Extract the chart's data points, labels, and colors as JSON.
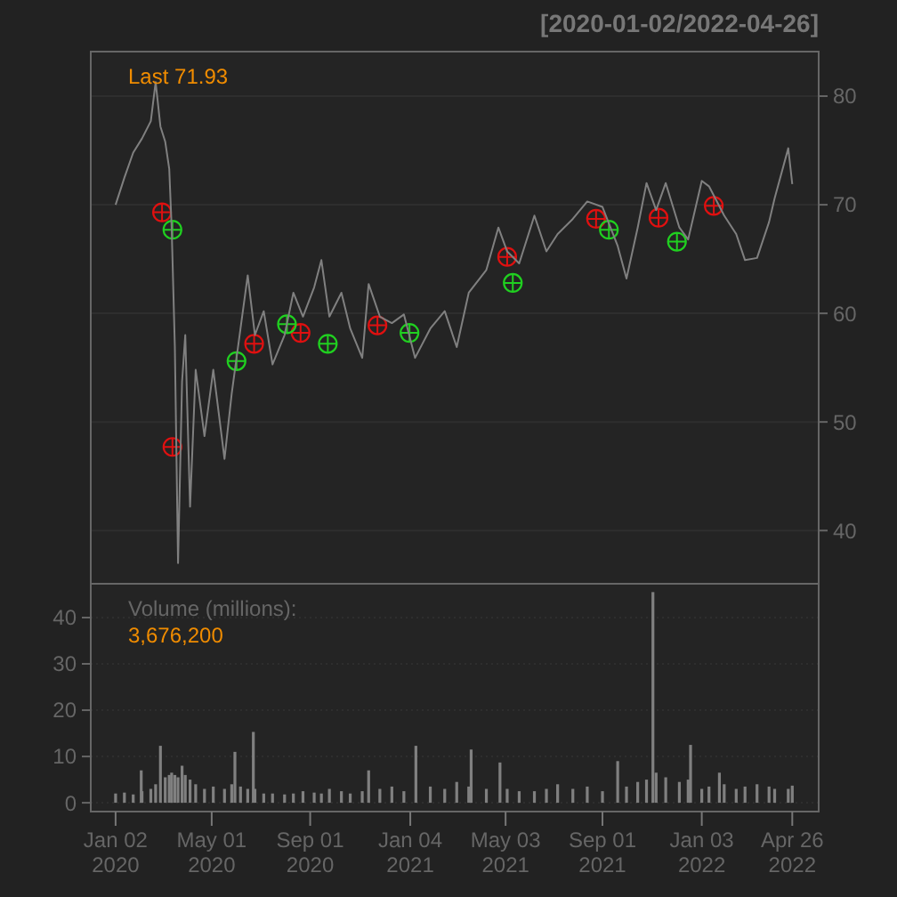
{
  "chart_data": [
    {
      "type": "line",
      "title": "[2020-01-02/2022-04-26]",
      "annotations": [
        "Last 71.93"
      ],
      "xlim": [
        "2019-12-02",
        "2022-05-29"
      ],
      "tick_labels": "y",
      "ylim": [
        35.1,
        84.1
      ],
      "yticks": [
        40,
        50,
        60,
        70,
        80
      ],
      "grid": "y",
      "series": [
        {
          "color": "#808080",
          "x": [
            "2020-01-02",
            "2020-01-13",
            "2020-01-24",
            "2020-02-04",
            "2020-02-15",
            "2020-02-21",
            "2020-02-27",
            "2020-03-04",
            "2020-03-09",
            "2020-03-12",
            "2020-03-16",
            "2020-03-20",
            "2020-03-25",
            "2020-03-29",
            "2020-04-04",
            "2020-04-11",
            "2020-04-22",
            "2020-05-03",
            "2020-05-17",
            "2020-05-26",
            "2020-06-06",
            "2020-06-15",
            "2020-06-24",
            "2020-07-05",
            "2020-07-16",
            "2020-07-31",
            "2020-08-11",
            "2020-08-23",
            "2020-09-06",
            "2020-09-15",
            "2020-09-25",
            "2020-10-10",
            "2020-10-21",
            "2020-11-05",
            "2020-11-13",
            "2020-11-27",
            "2020-12-12",
            "2020-12-27",
            "2021-01-10",
            "2021-01-29",
            "2021-02-16",
            "2021-03-03",
            "2021-03-18",
            "2021-04-09",
            "2021-04-24",
            "2021-05-05",
            "2021-05-20",
            "2021-06-08",
            "2021-06-23",
            "2021-07-07",
            "2021-07-26",
            "2021-08-13",
            "2021-09-01",
            "2021-09-20",
            "2021-10-01",
            "2021-10-15",
            "2021-10-26",
            "2021-11-07",
            "2021-11-19",
            "2021-12-06",
            "2021-12-17",
            "2022-01-03",
            "2022-01-12",
            "2022-01-31",
            "2022-02-15",
            "2022-02-26",
            "2022-03-13",
            "2022-03-28",
            "2022-04-04",
            "2022-04-21",
            "2022-04-26"
          ],
          "values": [
            70.0,
            72.5,
            74.8,
            76.1,
            77.7,
            81.3,
            77.2,
            75.8,
            73.3,
            67.9,
            56.9,
            37.0,
            53.7,
            58.0,
            42.2,
            54.8,
            48.7,
            54.8,
            46.6,
            52.6,
            58.6,
            63.5,
            58.0,
            60.2,
            55.3,
            58.0,
            61.9,
            59.7,
            62.4,
            64.9,
            59.7,
            61.9,
            58.6,
            55.9,
            62.7,
            59.7,
            59.1,
            59.9,
            55.9,
            58.6,
            60.2,
            56.9,
            61.9,
            64.0,
            67.9,
            65.7,
            64.6,
            69.0,
            65.7,
            67.3,
            68.7,
            70.3,
            69.8,
            66.2,
            63.2,
            67.9,
            72.0,
            69.5,
            72.0,
            67.9,
            66.8,
            72.2,
            71.7,
            69.0,
            67.3,
            64.9,
            65.1,
            68.4,
            70.6,
            75.2,
            71.9
          ]
        },
        {
          "type": "scatter",
          "color": "#e01010",
          "marker": "circle",
          "x": [
            "2020-02-29",
            "2020-03-13",
            "2020-06-23",
            "2020-08-20",
            "2020-11-24",
            "2021-05-05",
            "2021-08-24",
            "2021-11-10",
            "2022-01-18"
          ],
          "values": [
            69.3,
            47.7,
            57.2,
            58.2,
            58.9,
            65.2,
            68.7,
            68.8,
            69.9
          ]
        },
        {
          "type": "scatter",
          "color": "#20d020",
          "marker": "circle",
          "x": [
            "2020-03-13",
            "2020-06-01",
            "2020-08-03",
            "2020-09-23",
            "2021-01-03",
            "2021-05-12",
            "2021-09-09",
            "2021-12-03"
          ],
          "values": [
            67.7,
            55.6,
            59.0,
            57.2,
            58.2,
            62.8,
            67.7,
            66.6
          ]
        }
      ]
    },
    {
      "type": "bar",
      "annotations": [
        "Volume (millions):",
        "3,676,200"
      ],
      "xlim": [
        "2019-12-02",
        "2022-05-29"
      ],
      "xticks": [
        {
          "value": "2020-01-02",
          "label": "Jan 02\n2020"
        },
        {
          "value": "2020-05-01",
          "label": "May 01\n2020"
        },
        {
          "value": "2020-09-01",
          "label": "Sep 01\n2020"
        },
        {
          "value": "2021-01-04",
          "label": "Jan 04\n2021"
        },
        {
          "value": "2021-05-03",
          "label": "May 03\n2021"
        },
        {
          "value": "2021-09-01",
          "label": "Sep 01\n2021"
        },
        {
          "value": "2022-01-03",
          "label": "Jan 03\n2022"
        },
        {
          "value": "2022-04-26",
          "label": "Apr 26\n2022"
        }
      ],
      "ylim": [
        -1.9,
        47.3
      ],
      "yticks": [
        0,
        10,
        20,
        30,
        40
      ],
      "grid": "y",
      "color": "#808080",
      "x": [
        "2020-01-02",
        "2020-01-13",
        "2020-01-24",
        "2020-02-03",
        "2020-02-04",
        "2020-02-15",
        "2020-02-21",
        "2020-02-27",
        "2020-03-04",
        "2020-03-09",
        "2020-03-12",
        "2020-03-16",
        "2020-03-20",
        "2020-03-25",
        "2020-03-29",
        "2020-04-04",
        "2020-04-11",
        "2020-04-22",
        "2020-05-03",
        "2020-05-17",
        "2020-05-26",
        "2020-05-30",
        "2020-06-06",
        "2020-06-15",
        "2020-06-22",
        "2020-06-24",
        "2020-07-05",
        "2020-07-16",
        "2020-07-31",
        "2020-08-11",
        "2020-08-23",
        "2020-09-06",
        "2020-09-15",
        "2020-09-25",
        "2020-10-10",
        "2020-10-21",
        "2020-11-05",
        "2020-11-13",
        "2020-11-27",
        "2020-12-12",
        "2020-12-27",
        "2021-01-11",
        "2021-01-29",
        "2021-02-16",
        "2021-03-03",
        "2021-03-18",
        "2021-03-21",
        "2021-04-09",
        "2021-04-26",
        "2021-05-05",
        "2021-05-20",
        "2021-06-08",
        "2021-06-23",
        "2021-07-07",
        "2021-07-26",
        "2021-08-13",
        "2021-09-01",
        "2021-09-20",
        "2021-10-01",
        "2021-10-15",
        "2021-10-26",
        "2021-11-03",
        "2021-11-07",
        "2021-11-19",
        "2021-12-06",
        "2021-12-17",
        "2021-12-20",
        "2022-01-03",
        "2022-01-12",
        "2022-01-25",
        "2022-01-31",
        "2022-02-15",
        "2022-02-26",
        "2022-03-13",
        "2022-03-28",
        "2022-04-04",
        "2022-04-21",
        "2022-04-26"
      ],
      "values": [
        2.0,
        2.2,
        1.8,
        7.0,
        2.5,
        3.0,
        4.0,
        12.3,
        5.5,
        6.0,
        6.5,
        6.0,
        5.5,
        8.0,
        6.0,
        5.0,
        4.0,
        3.0,
        3.5,
        3.0,
        4.0,
        11.0,
        3.5,
        3.0,
        15.3,
        3.0,
        2.0,
        2.0,
        1.8,
        2.0,
        2.5,
        2.2,
        2.0,
        3.0,
        2.5,
        2.0,
        2.5,
        7.0,
        3.0,
        3.5,
        2.5,
        12.3,
        3.5,
        3.0,
        4.5,
        3.5,
        11.5,
        3.0,
        8.7,
        3.0,
        2.5,
        2.5,
        3.0,
        4.0,
        3.0,
        3.5,
        2.5,
        9.0,
        3.5,
        4.5,
        5.0,
        45.5,
        6.5,
        5.5,
        4.5,
        5.0,
        12.5,
        3.0,
        3.5,
        6.5,
        4.0,
        3.0,
        3.5,
        4.0,
        3.5,
        3.0,
        3.0,
        3.7
      ]
    }
  ]
}
